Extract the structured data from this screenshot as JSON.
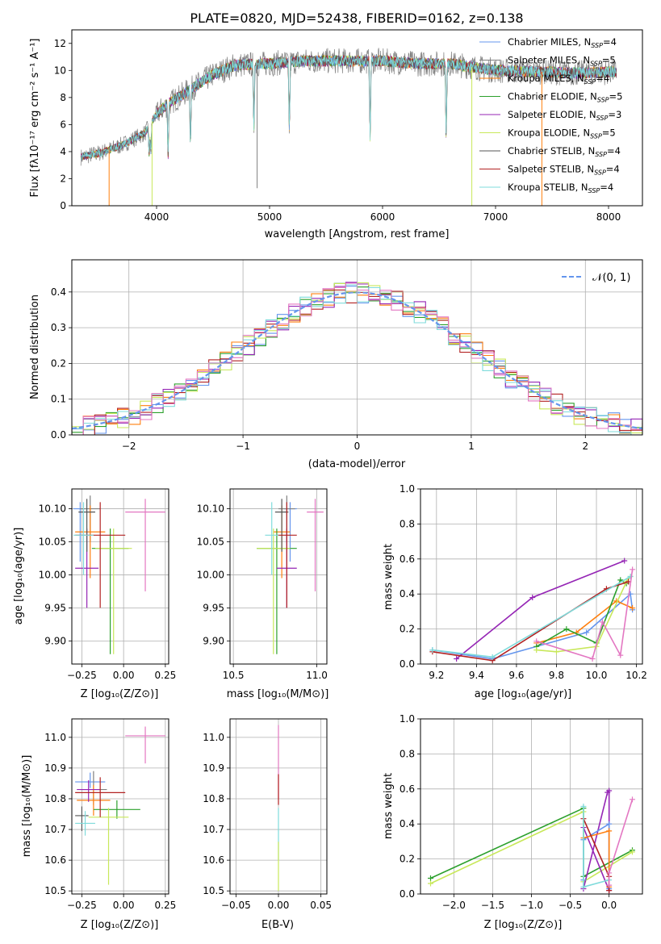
{
  "colors": {
    "chabrier_miles": "#6495ed",
    "salpeter_miles": "#7f7f7f",
    "kroupa_miles": "#ff7f0e",
    "chabrier_elodie": "#2ca02c",
    "salpeter_elodie": "#9525b5",
    "kroupa_elodie": "#c8e85a",
    "chabrier_stelib": "#555555",
    "salpeter_stelib": "#b22222",
    "kroupa_stelib": "#7fdbdb",
    "pink": "#e377c2"
  },
  "chart_data": [
    {
      "id": "spectrum",
      "type": "line",
      "title": "PLATE=0820, MJD=52438, FIBERID=0162, z=0.138",
      "xlabel": "wavelength [Angstrom, rest frame]",
      "ylabel": "Flux [fλ10⁻¹⁷ erg cm⁻² s⁻¹ A⁻¹]",
      "xlim": [
        3250,
        8300
      ],
      "ylim": [
        0,
        13
      ],
      "xticks": [
        4000,
        5000,
        6000,
        7000,
        8000
      ],
      "yticks": [
        0,
        2,
        4,
        6,
        8,
        10,
        12
      ],
      "continuum": {
        "x": [
          3330,
          3500,
          3700,
          3900,
          4000,
          4100,
          4300,
          4500,
          4700,
          5000,
          5300,
          5600,
          6000,
          6300,
          6600,
          7000,
          7400,
          7700,
          8070
        ],
        "y": [
          3.6,
          3.9,
          4.5,
          5.4,
          6.8,
          7.5,
          8.6,
          9.7,
          10.4,
          10.5,
          10.7,
          10.7,
          10.7,
          10.5,
          10.5,
          10.0,
          9.9,
          9.8,
          9.9
        ]
      },
      "legend_position": "upper-right",
      "legend": [
        {
          "label": "Chabrier MILES, N",
          "sub": "SSP",
          "suffix": "=4"
        },
        {
          "label": "Salpeter MILES, N",
          "sub": "SSP",
          "suffix": "=5"
        },
        {
          "label": "Kroupa MILES, N",
          "sub": "SSP",
          "suffix": "=4"
        },
        {
          "label": "Chabrier ELODIE, N",
          "sub": "SSP",
          "suffix": "=5"
        },
        {
          "label": "Salpeter ELODIE, N",
          "sub": "SSP",
          "suffix": "=3"
        },
        {
          "label": "Kroupa ELODIE, N",
          "sub": "SSP",
          "suffix": "=5"
        },
        {
          "label": "Chabrier STELIB, N",
          "sub": "SSP",
          "suffix": "=4"
        },
        {
          "label": "Salpeter STELIB, N",
          "sub": "SSP",
          "suffix": "=4"
        },
        {
          "label": "Kroupa STELIB, N",
          "sub": "SSP",
          "suffix": "=4"
        }
      ]
    },
    {
      "id": "residuals",
      "type": "bar",
      "xlabel": "(data-model)/error",
      "ylabel": "Normed distribution",
      "xlim": [
        -2.5,
        2.5
      ],
      "ylim": [
        0,
        0.49
      ],
      "xticks": [
        -2,
        -1,
        0,
        1,
        2
      ],
      "yticks": [
        0.0,
        0.1,
        0.2,
        0.3,
        0.4
      ],
      "legend": "𝒩(0, 1)",
      "bin_width": 0.1,
      "gaussian": {
        "mean": 0,
        "sigma": 1
      }
    },
    {
      "id": "age_vs_Z",
      "type": "scatter",
      "xlabel": "Z [log₁₀(Z/Z⊙)]",
      "ylabel": "age  [log₁₀(age/yr)]",
      "xlim": [
        -0.31,
        0.27
      ],
      "ylim": [
        9.865,
        10.13
      ],
      "xticks": [
        -0.25,
        0.0,
        0.25
      ],
      "yticks": [
        9.9,
        9.95,
        10.0,
        10.05,
        10.1
      ],
      "points": [
        {
          "x": -0.26,
          "y": 10.1,
          "xerr": 0.04,
          "yerr_lo": 0.08,
          "yerr_hi": 0.01,
          "c": "chabrier_miles"
        },
        {
          "x": -0.2,
          "y": 10.1,
          "xerr": 0.06,
          "yerr_lo": 0.05,
          "yerr_hi": 0.02,
          "c": "salpeter_miles"
        },
        {
          "x": -0.2,
          "y": 10.065,
          "xerr": 0.09,
          "yerr_lo": 0.07,
          "yerr_hi": 0.04,
          "c": "kroupa_miles"
        },
        {
          "x": -0.08,
          "y": 10.04,
          "xerr": 0.11,
          "yerr_lo": 0.16,
          "yerr_hi": 0.03,
          "c": "chabrier_elodie"
        },
        {
          "x": -0.22,
          "y": 10.01,
          "xerr": 0.07,
          "yerr_lo": 0.06,
          "yerr_hi": 0.06,
          "c": "salpeter_elodie"
        },
        {
          "x": -0.06,
          "y": 10.04,
          "xerr": 0.11,
          "yerr_lo": 0.16,
          "yerr_hi": 0.03,
          "c": "kroupa_elodie"
        },
        {
          "x": -0.22,
          "y": 10.095,
          "xerr": 0.05,
          "yerr_lo": 0.06,
          "yerr_hi": 0.02,
          "c": "chabrier_stelib"
        },
        {
          "x": -0.14,
          "y": 10.06,
          "xerr": 0.15,
          "yerr_lo": 0.11,
          "yerr_hi": 0.05,
          "c": "salpeter_stelib"
        },
        {
          "x": -0.24,
          "y": 10.06,
          "xerr": 0.06,
          "yerr_lo": 0.06,
          "yerr_hi": 0.05,
          "c": "kroupa_stelib"
        },
        {
          "x": 0.13,
          "y": 10.095,
          "xerr": 0.12,
          "yerr_lo": 0.12,
          "yerr_hi": 0.02,
          "c": "pink"
        }
      ]
    },
    {
      "id": "age_vs_mass",
      "type": "scatter",
      "xlabel": "mass [log₁₀(M/M⊙)]",
      "ylabel": "",
      "xlim": [
        10.48,
        11.06
      ],
      "ylim": [
        9.865,
        10.13
      ],
      "xticks": [
        10.5,
        11.0
      ],
      "yticks": [
        9.9,
        9.95,
        10.0,
        10.05,
        10.1
      ],
      "points": [
        {
          "x": 10.84,
          "y": 10.1,
          "xerr": 0.04,
          "yerr_lo": 0.08,
          "yerr_hi": 0.01,
          "c": "chabrier_miles"
        },
        {
          "x": 10.82,
          "y": 10.1,
          "xerr": 0.05,
          "yerr_lo": 0.05,
          "yerr_hi": 0.02,
          "c": "salpeter_miles"
        },
        {
          "x": 10.79,
          "y": 10.065,
          "xerr": 0.05,
          "yerr_lo": 0.07,
          "yerr_hi": 0.04,
          "c": "kroupa_miles"
        },
        {
          "x": 10.76,
          "y": 10.04,
          "xerr": 0.12,
          "yerr_lo": 0.16,
          "yerr_hi": 0.03,
          "c": "chabrier_elodie"
        },
        {
          "x": 10.82,
          "y": 10.01,
          "xerr": 0.06,
          "yerr_lo": 0.06,
          "yerr_hi": 0.06,
          "c": "salpeter_elodie"
        },
        {
          "x": 10.74,
          "y": 10.04,
          "xerr": 0.1,
          "yerr_lo": 0.16,
          "yerr_hi": 0.03,
          "c": "kroupa_elodie"
        },
        {
          "x": 10.79,
          "y": 10.095,
          "xerr": 0.04,
          "yerr_lo": 0.06,
          "yerr_hi": 0.02,
          "c": "chabrier_stelib"
        },
        {
          "x": 10.82,
          "y": 10.06,
          "xerr": 0.06,
          "yerr_lo": 0.11,
          "yerr_hi": 0.05,
          "c": "salpeter_stelib"
        },
        {
          "x": 10.73,
          "y": 10.06,
          "xerr": 0.04,
          "yerr_lo": 0.06,
          "yerr_hi": 0.05,
          "c": "kroupa_stelib"
        },
        {
          "x": 10.99,
          "y": 10.095,
          "xerr": 0.05,
          "yerr_lo": 0.12,
          "yerr_hi": 0.02,
          "c": "pink"
        }
      ]
    },
    {
      "id": "weight_vs_age",
      "type": "line",
      "xlabel": "age  [log₁₀(age/yr)]",
      "ylabel": "mass weight",
      "xlim": [
        9.12,
        10.23
      ],
      "ylim": [
        0,
        1.0
      ],
      "xticks": [
        9.2,
        9.4,
        9.6,
        9.8,
        10.0,
        10.2
      ],
      "yticks": [
        0.0,
        0.2,
        0.4,
        0.6,
        0.8,
        1.0
      ],
      "series": [
        {
          "c": "chabrier_miles",
          "x": [
            9.18,
            9.48,
            9.95,
            10.17,
            10.18
          ],
          "y": [
            0.08,
            0.03,
            0.18,
            0.4,
            0.31
          ]
        },
        {
          "c": "kroupa_miles",
          "x": [
            9.7,
            9.9,
            10.1,
            10.18
          ],
          "y": [
            0.12,
            0.18,
            0.36,
            0.32
          ]
        },
        {
          "c": "chabrier_elodie",
          "x": [
            9.7,
            9.85,
            10.0,
            10.12,
            10.15
          ],
          "y": [
            0.1,
            0.2,
            0.12,
            0.48,
            0.46
          ]
        },
        {
          "c": "salpeter_elodie",
          "x": [
            9.3,
            9.68,
            10.14
          ],
          "y": [
            0.03,
            0.38,
            0.59
          ]
        },
        {
          "c": "kroupa_elodie",
          "x": [
            9.7,
            9.8,
            10.0,
            10.15,
            10.17
          ],
          "y": [
            0.08,
            0.07,
            0.1,
            0.47,
            0.5
          ]
        },
        {
          "c": "salpeter_stelib",
          "x": [
            9.18,
            9.48,
            10.05,
            10.16
          ],
          "y": [
            0.07,
            0.02,
            0.43,
            0.47
          ]
        },
        {
          "c": "kroupa_stelib",
          "x": [
            9.18,
            9.48,
            10.17
          ],
          "y": [
            0.08,
            0.04,
            0.5
          ]
        },
        {
          "c": "pink",
          "x": [
            9.7,
            9.98,
            10.03,
            10.12,
            10.18
          ],
          "y": [
            0.13,
            0.03,
            0.24,
            0.05,
            0.54
          ]
        }
      ]
    },
    {
      "id": "mass_vs_Z",
      "type": "scatter",
      "xlabel": "Z [log₁₀(Z/Z⊙)]",
      "ylabel": "mass [log₁₀(M/M⊙)]",
      "xlim": [
        -0.31,
        0.27
      ],
      "ylim": [
        10.49,
        11.06
      ],
      "xticks": [
        -0.25,
        0.0,
        0.25
      ],
      "yticks": [
        10.5,
        10.6,
        10.7,
        10.8,
        10.9,
        11.0
      ],
      "points": [
        {
          "x": -0.2,
          "y": 10.855,
          "xerr": 0.09,
          "yerr_lo": 0.02,
          "yerr_hi": 0.03,
          "c": "chabrier_miles"
        },
        {
          "x": -0.18,
          "y": 10.83,
          "xerr": 0.08,
          "yerr_lo": 0.05,
          "yerr_hi": 0.06,
          "c": "salpeter_miles"
        },
        {
          "x": -0.18,
          "y": 10.795,
          "xerr": 0.1,
          "yerr_lo": 0.05,
          "yerr_hi": 0.05,
          "c": "kroupa_miles"
        },
        {
          "x": -0.04,
          "y": 10.765,
          "xerr": 0.14,
          "yerr_lo": 0.03,
          "yerr_hi": 0.03,
          "c": "chabrier_elodie"
        },
        {
          "x": -0.21,
          "y": 10.83,
          "xerr": 0.07,
          "yerr_lo": 0.04,
          "yerr_hi": 0.03,
          "c": "salpeter_elodie"
        },
        {
          "x": -0.09,
          "y": 10.74,
          "xerr": 0.12,
          "yerr_lo": 0.22,
          "yerr_hi": 0.03,
          "c": "kroupa_elodie"
        },
        {
          "x": -0.25,
          "y": 10.745,
          "xerr": 0.04,
          "yerr_lo": 0.05,
          "yerr_hi": 0.03,
          "c": "chabrier_stelib"
        },
        {
          "x": -0.14,
          "y": 10.82,
          "xerr": 0.15,
          "yerr_lo": 0.08,
          "yerr_hi": 0.05,
          "c": "salpeter_stelib"
        },
        {
          "x": -0.23,
          "y": 10.72,
          "xerr": 0.06,
          "yerr_lo": 0.04,
          "yerr_hi": 0.04,
          "c": "kroupa_stelib"
        },
        {
          "x": 0.13,
          "y": 11.005,
          "xerr": 0.12,
          "yerr_lo": 0.09,
          "yerr_hi": 0.03,
          "c": "pink"
        }
      ]
    },
    {
      "id": "mass_vs_ebv",
      "type": "scatter",
      "xlabel": "E(B-V)",
      "ylabel": "",
      "xlim": [
        -0.057,
        0.057
      ],
      "ylim": [
        10.49,
        11.06
      ],
      "xticks": [
        -0.05,
        0.0,
        0.05
      ],
      "yticks": [
        10.5,
        10.6,
        10.7,
        10.8,
        10.9,
        11.0
      ],
      "points": [
        {
          "x": 0.0,
          "y": 10.99,
          "xerr": 0.0,
          "yerr_lo": 0.19,
          "yerr_hi": 0.05,
          "c": "pink"
        },
        {
          "x": 0.0,
          "y": 10.83,
          "xerr": 0.0,
          "yerr_lo": 0.05,
          "yerr_hi": 0.05,
          "c": "salpeter_stelib"
        },
        {
          "x": 0.0,
          "y": 10.72,
          "xerr": 0.0,
          "yerr_lo": 0.12,
          "yerr_hi": 0.05,
          "c": "kroupa_stelib"
        },
        {
          "x": 0.0,
          "y": 10.6,
          "xerr": 0.0,
          "yerr_lo": 0.1,
          "yerr_hi": 0.06,
          "c": "kroupa_elodie"
        }
      ]
    },
    {
      "id": "weight_vs_Z",
      "type": "line",
      "xlabel": "Z [log₁₀(Z/Z⊙)]",
      "ylabel": "mass weight",
      "xlim": [
        -2.43,
        0.43
      ],
      "ylim": [
        0,
        1.0
      ],
      "xticks": [
        -2.0,
        -1.5,
        -1.0,
        -0.5,
        0.0
      ],
      "yticks": [
        0.0,
        0.2,
        0.4,
        0.6,
        0.8,
        1.0
      ],
      "series": [
        {
          "c": "chabrier_elodie",
          "x": [
            -2.3,
            -0.33,
            -0.33,
            0.3
          ],
          "y": [
            0.09,
            0.49,
            0.1,
            0.25
          ]
        },
        {
          "c": "kroupa_elodie",
          "x": [
            -2.3,
            -0.33,
            -0.33,
            0.3
          ],
          "y": [
            0.06,
            0.47,
            0.07,
            0.24
          ]
        },
        {
          "c": "salpeter_elodie",
          "x": [
            -0.33,
            -0.02,
            0.0,
            0.0,
            -0.33
          ],
          "y": [
            0.03,
            0.58,
            0.59,
            0.02,
            0.38
          ]
        },
        {
          "c": "chabrier_miles",
          "x": [
            -0.33,
            -0.33,
            0.0,
            0.0
          ],
          "y": [
            0.08,
            0.31,
            0.4,
            0.03
          ]
        },
        {
          "c": "kroupa_miles",
          "x": [
            -0.33,
            0.0,
            0.0
          ],
          "y": [
            0.32,
            0.36,
            0.04
          ]
        },
        {
          "c": "salpeter_stelib",
          "x": [
            -0.33,
            0.0,
            0.0
          ],
          "y": [
            0.43,
            0.1,
            0.02
          ]
        },
        {
          "c": "kroupa_stelib",
          "x": [
            -0.33,
            -0.33,
            0.0
          ],
          "y": [
            0.5,
            0.04,
            0.08
          ]
        },
        {
          "c": "pink",
          "x": [
            0.0,
            0.0,
            0.3
          ],
          "y": [
            0.05,
            0.12,
            0.54
          ]
        }
      ]
    }
  ]
}
